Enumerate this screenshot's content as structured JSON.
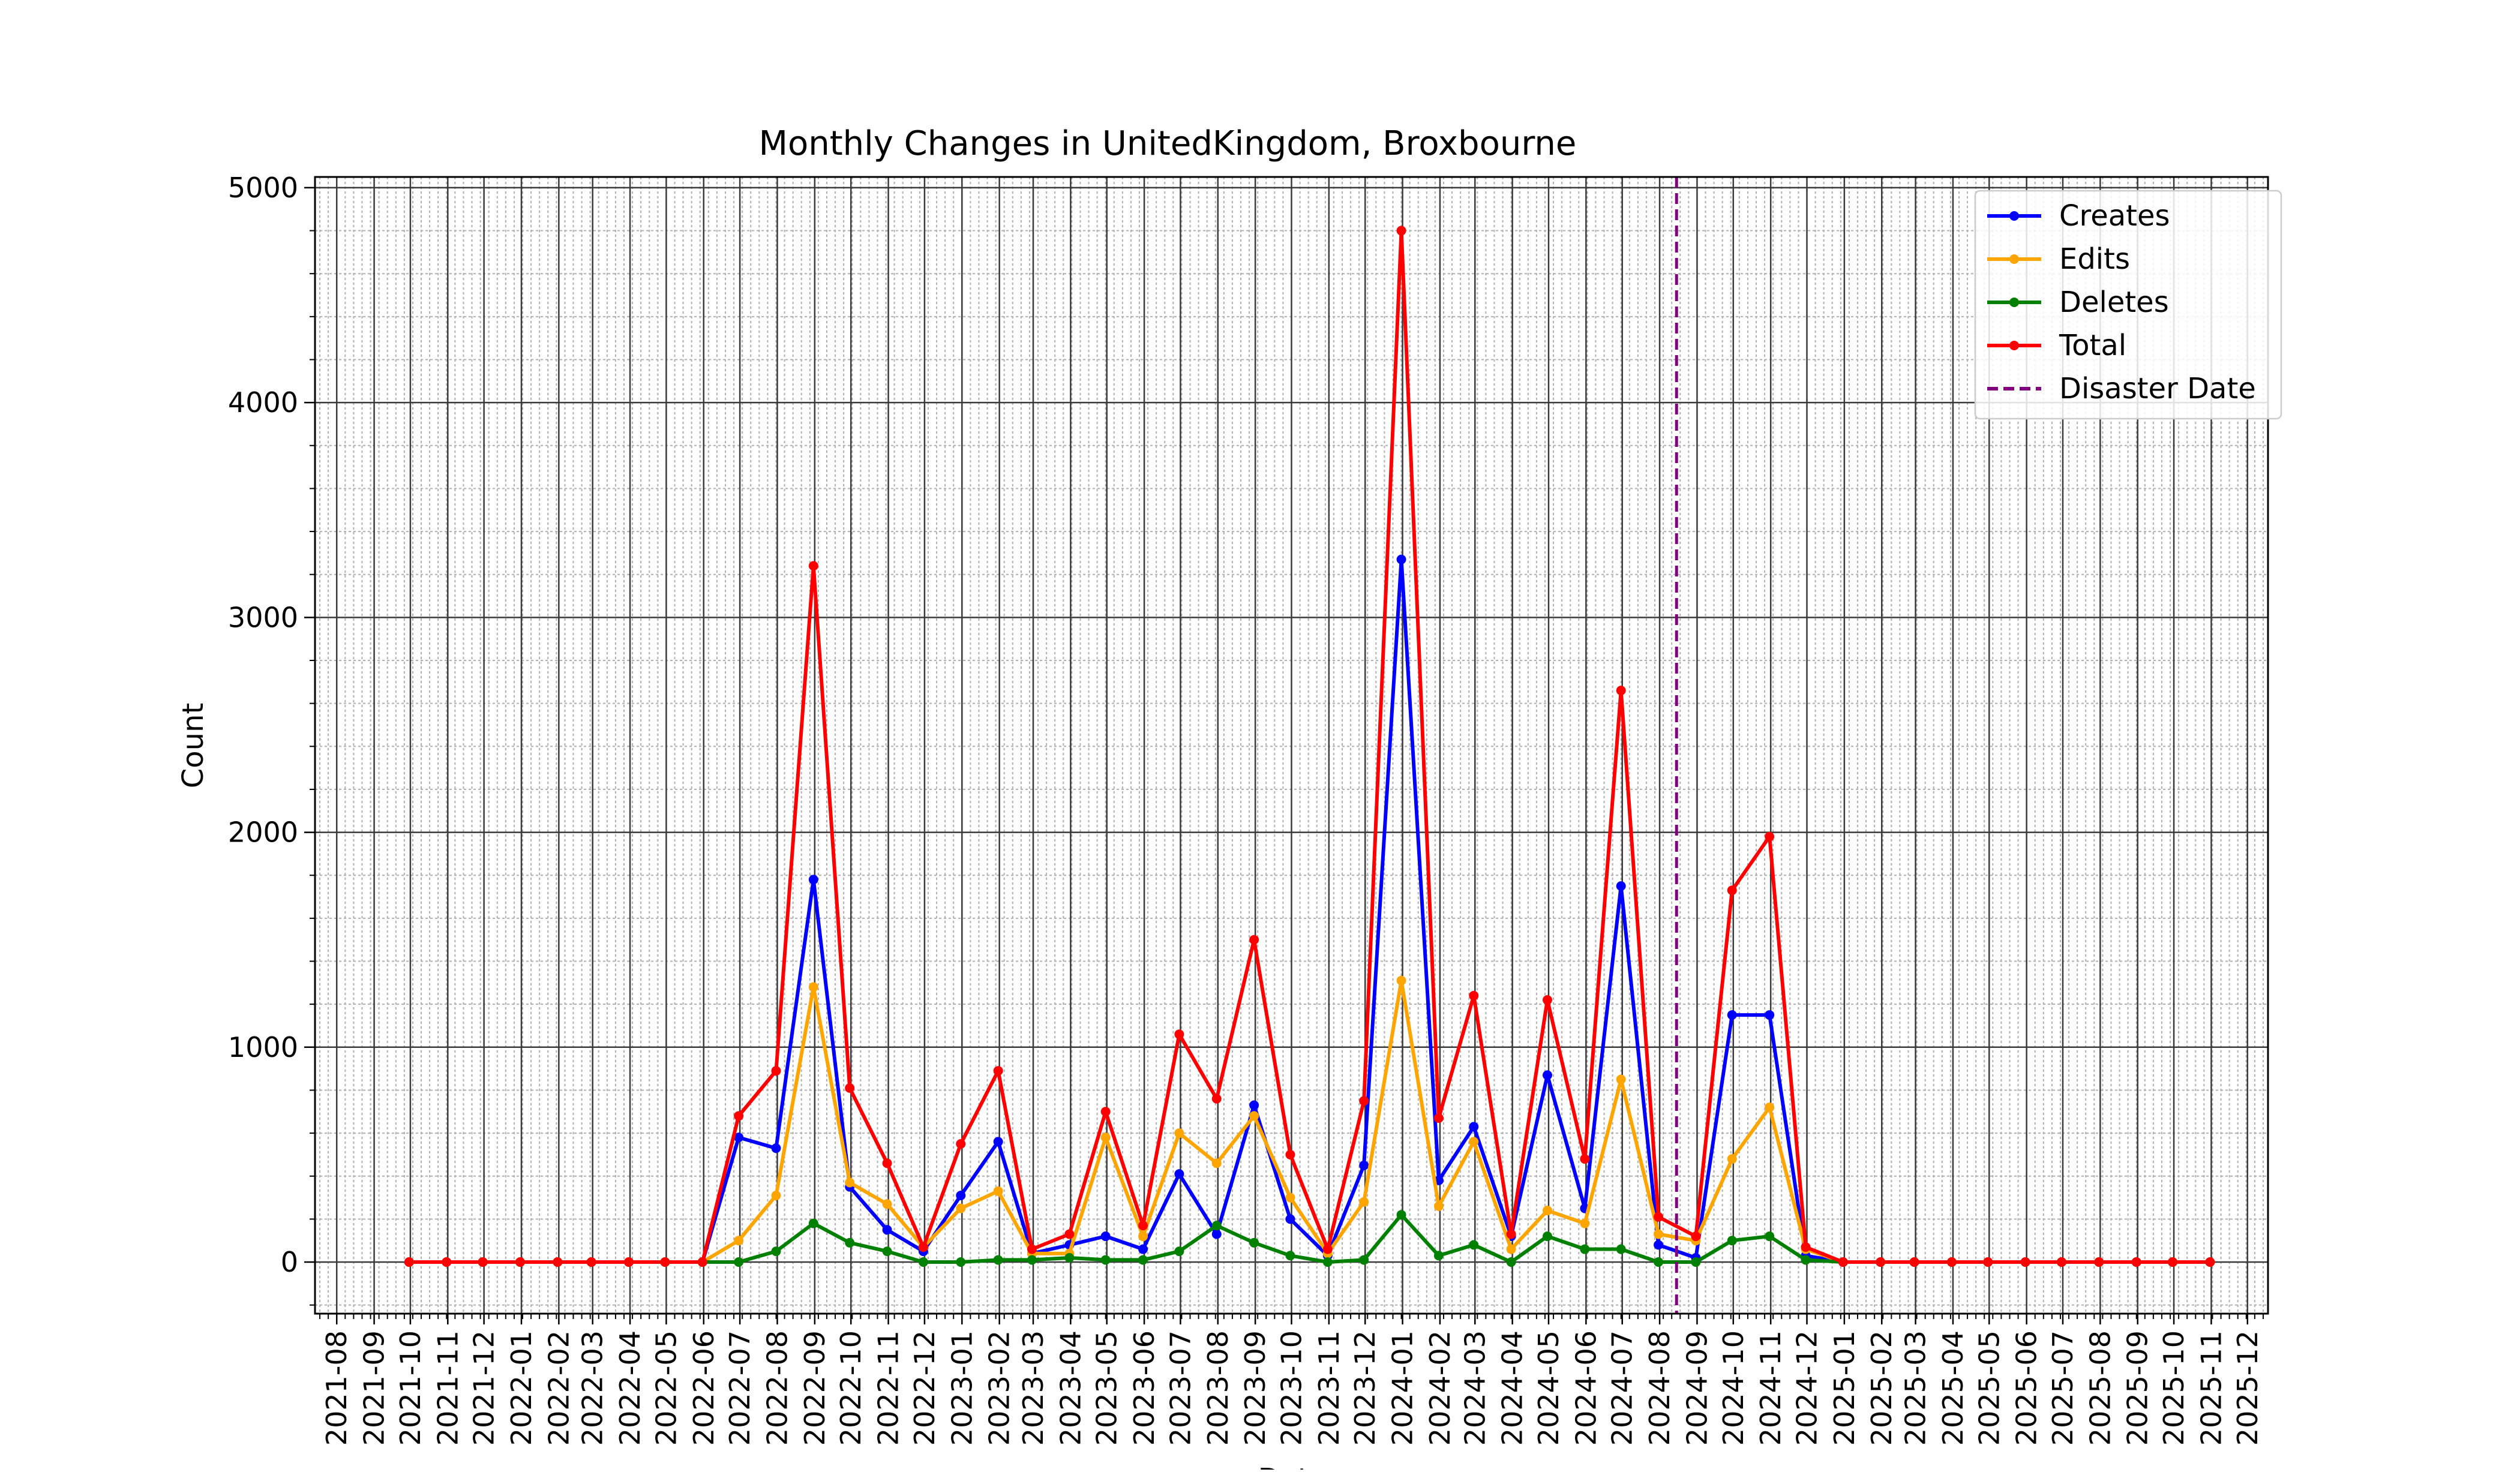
{
  "chart_data": {
    "type": "line",
    "title": "Monthly Changes in UnitedKingdom, Broxbourne",
    "xlabel": "Date",
    "ylabel": "Count",
    "ylim": [
      -240,
      5050
    ],
    "y_ticks": [
      0,
      1000,
      2000,
      3000,
      4000,
      5000
    ],
    "x_ticks": [
      "2021-08",
      "2021-09",
      "2021-10",
      "2021-11",
      "2021-12",
      "2022-01",
      "2022-02",
      "2022-03",
      "2022-04",
      "2022-05",
      "2022-06",
      "2022-07",
      "2022-08",
      "2022-09",
      "2022-10",
      "2022-11",
      "2022-12",
      "2023-01",
      "2023-02",
      "2023-03",
      "2023-04",
      "2023-05",
      "2023-06",
      "2023-07",
      "2023-08",
      "2023-09",
      "2023-10",
      "2023-11",
      "2023-12",
      "2024-01",
      "2024-02",
      "2024-03",
      "2024-04",
      "2024-05",
      "2024-06",
      "2024-07",
      "2024-08",
      "2024-09",
      "2024-10",
      "2024-11",
      "2024-12",
      "2025-01",
      "2025-02",
      "2025-03",
      "2025-04",
      "2025-05",
      "2025-06",
      "2025-07",
      "2025-08",
      "2025-09",
      "2025-10",
      "2025-11",
      "2025-12"
    ],
    "x": [
      "2021-09-30",
      "2021-10-31",
      "2021-11-30",
      "2021-12-31",
      "2022-01-31",
      "2022-02-28",
      "2022-03-31",
      "2022-04-30",
      "2022-05-31",
      "2022-06-30",
      "2022-07-31",
      "2022-08-31",
      "2022-09-30",
      "2022-10-31",
      "2022-11-30",
      "2022-12-31",
      "2023-01-31",
      "2023-02-28",
      "2023-03-31",
      "2023-04-30",
      "2023-05-31",
      "2023-06-30",
      "2023-07-31",
      "2023-08-31",
      "2023-09-30",
      "2023-10-31",
      "2023-11-30",
      "2023-12-31",
      "2024-01-31",
      "2024-02-29",
      "2024-03-31",
      "2024-04-30",
      "2024-05-31",
      "2024-06-30",
      "2024-07-31",
      "2024-08-31",
      "2024-09-30",
      "2024-10-31",
      "2024-11-30",
      "2024-12-31",
      "2025-01-31",
      "2025-02-28",
      "2025-03-31",
      "2025-04-30",
      "2025-05-31",
      "2025-06-30",
      "2025-07-31",
      "2025-08-31",
      "2025-09-30",
      "2025-10-31"
    ],
    "series": [
      {
        "name": "Creates",
        "color": "#0000ff",
        "values": [
          0,
          0,
          0,
          0,
          0,
          0,
          0,
          0,
          0,
          580,
          530,
          1780,
          350,
          150,
          50,
          310,
          560,
          40,
          80,
          120,
          60,
          410,
          130,
          730,
          200,
          30,
          450,
          3270,
          380,
          630,
          120,
          870,
          250,
          1750,
          80,
          20,
          1150,
          1150,
          30,
          0,
          0,
          0,
          0,
          0,
          0,
          0,
          0,
          0,
          0,
          0
        ]
      },
      {
        "name": "Edits",
        "color": "#ffa500",
        "values": [
          0,
          0,
          0,
          0,
          0,
          0,
          0,
          0,
          0,
          100,
          310,
          1280,
          370,
          270,
          70,
          250,
          330,
          40,
          40,
          580,
          120,
          600,
          460,
          680,
          300,
          40,
          280,
          1310,
          260,
          560,
          60,
          240,
          180,
          850,
          130,
          100,
          480,
          720,
          60,
          0,
          0,
          0,
          0,
          0,
          0,
          0,
          0,
          0,
          0,
          0
        ]
      },
      {
        "name": "Deletes",
        "color": "#008000",
        "values": [
          0,
          0,
          0,
          0,
          0,
          0,
          0,
          0,
          0,
          0,
          50,
          180,
          90,
          50,
          0,
          0,
          10,
          10,
          20,
          10,
          10,
          50,
          170,
          90,
          30,
          0,
          10,
          220,
          30,
          80,
          0,
          120,
          60,
          60,
          0,
          0,
          100,
          120,
          10,
          0,
          0,
          0,
          0,
          0,
          0,
          0,
          0,
          0,
          0,
          0
        ]
      },
      {
        "name": "Total",
        "color": "#ff0000",
        "values": [
          0,
          0,
          0,
          0,
          0,
          0,
          0,
          0,
          0,
          680,
          890,
          3240,
          810,
          460,
          70,
          550,
          890,
          60,
          130,
          700,
          170,
          1060,
          760,
          1500,
          500,
          60,
          750,
          4800,
          670,
          1240,
          130,
          1220,
          480,
          2660,
          210,
          120,
          1730,
          1980,
          70,
          0,
          0,
          0,
          0,
          0,
          0,
          0,
          0,
          0,
          0,
          0
        ]
      }
    ],
    "disaster_date": {
      "label": "Disaster Date",
      "x": "2024-08-15",
      "color": "#800080"
    },
    "legend_position": "top-right",
    "grid": true
  }
}
